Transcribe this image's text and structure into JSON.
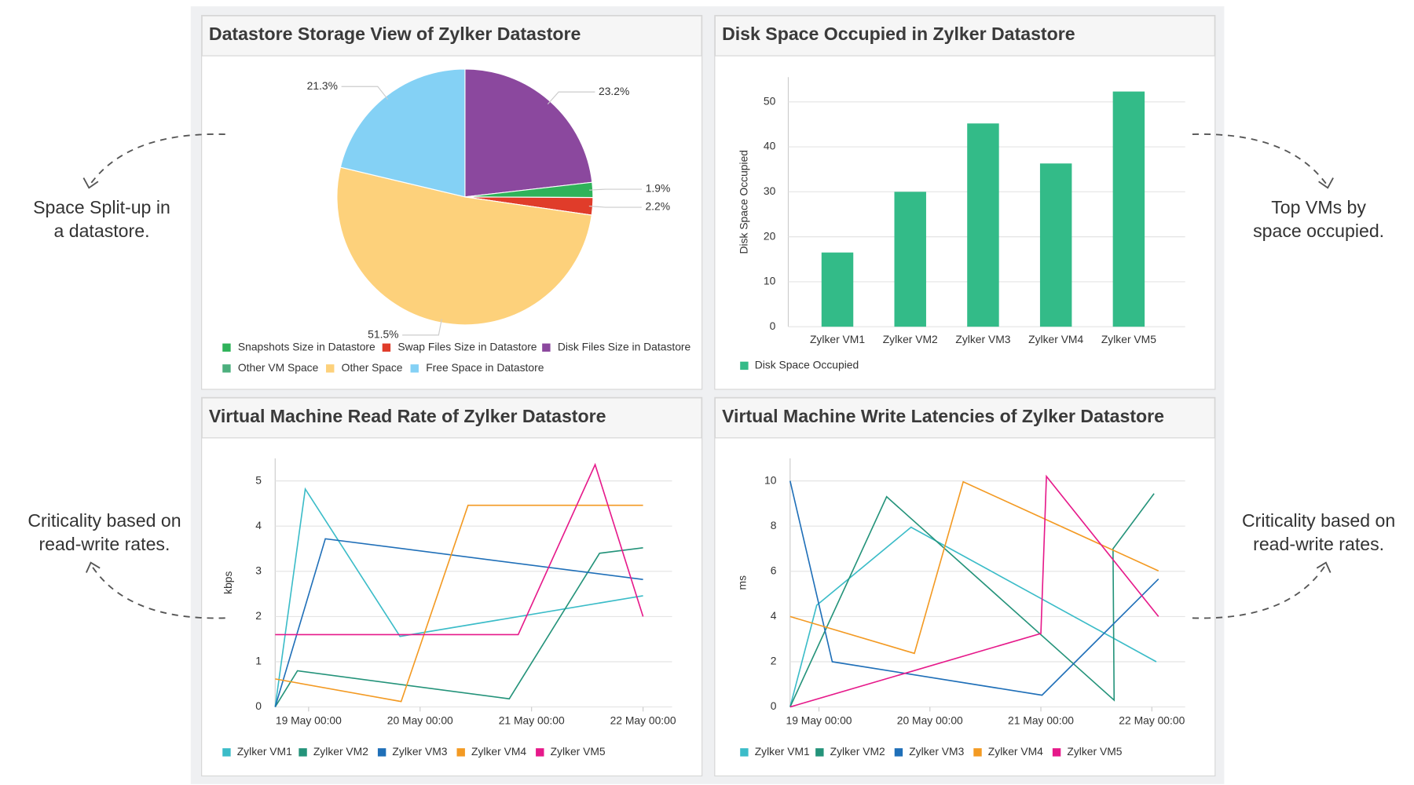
{
  "annotations": [
    {
      "lines": [
        "Space Split-up in",
        "a datastore."
      ]
    },
    {
      "lines": [
        "Top VMs by",
        "space occupied."
      ]
    },
    {
      "lines": [
        "Criticality based on",
        "read-write rates."
      ]
    },
    {
      "lines": [
        "Criticality based on",
        "read-write rates."
      ]
    }
  ],
  "chart_data": [
    {
      "type": "pie",
      "title": "Datastore Storage View of Zylker Datastore",
      "categories": [
        "Snapshots Size in Datastore",
        "Swap Files Size in Datastore",
        "Disk Files Size in Datastore",
        "Other VM Space",
        "Other Space",
        "Free Space in Datastore"
      ],
      "values": [
        1.9,
        2.2,
        23.2,
        0,
        51.5,
        21.3
      ],
      "value_labels": [
        "1.9%",
        "2.2%",
        "23.2%",
        null,
        "51.5%",
        "21.3%"
      ],
      "colors": [
        "#2fb35a",
        "#e03c2a",
        "#8b489e",
        "#4caf7d",
        "#fdd17b",
        "#84d1f5"
      ]
    },
    {
      "type": "bar",
      "title": "Disk Space Occupied in Zylker Datastore",
      "ylabel": "Disk Space Occupied",
      "categories": [
        "Zylker VM1",
        "Zylker VM2",
        "Zylker VM3",
        "Zylker VM4",
        "Zylker VM5"
      ],
      "series": [
        {
          "name": "Disk Space Occupied",
          "color": "#33bb88",
          "values": [
            16.5,
            30,
            45.2,
            36.3,
            52.3
          ]
        }
      ],
      "ylim": [
        0,
        55.5
      ],
      "yticks": [
        0,
        10,
        20,
        30,
        40,
        50
      ],
      "grid": true
    },
    {
      "type": "line",
      "title": "Virtual Machine Read Rate of Zylker Datastore",
      "ylabel": "kbps",
      "xlim": [
        -0.3,
        3.26
      ],
      "xticks": [
        {
          "value": 0,
          "label": "19 May 00:00"
        },
        {
          "value": 1,
          "label": "20 May 00:00"
        },
        {
          "value": 2,
          "label": "21 May 00:00"
        },
        {
          "value": 3,
          "label": "22 May 00:00"
        }
      ],
      "ylim": [
        0,
        5.5
      ],
      "yticks": [
        0,
        1,
        2,
        3,
        4,
        5
      ],
      "grid": true,
      "series": [
        {
          "name": "Zylker VM1",
          "color": "#3bbcc8",
          "x": [
            -0.3,
            -0.03,
            0.82,
            3.0
          ],
          "values": [
            0,
            4.82,
            1.56,
            2.46
          ]
        },
        {
          "name": "Zylker VM2",
          "color": "#24937a",
          "x": [
            -0.3,
            -0.1,
            1.8,
            2.61,
            3.0
          ],
          "values": [
            0,
            0.8,
            0.18,
            3.4,
            3.52
          ]
        },
        {
          "name": "Zylker VM3",
          "color": "#1f6fb8",
          "x": [
            -0.3,
            0.15,
            3.0
          ],
          "values": [
            0,
            3.72,
            2.82
          ]
        },
        {
          "name": "Zylker VM4",
          "color": "#f39a23",
          "x": [
            -0.3,
            0.83,
            1.43,
            3.0
          ],
          "values": [
            0.62,
            0.12,
            4.46,
            4.46
          ]
        },
        {
          "name": "Zylker VM5",
          "color": "#e6198a",
          "x": [
            -0.3,
            1.88,
            2.57,
            3.0
          ],
          "values": [
            1.6,
            1.6,
            5.36,
            2.0
          ]
        }
      ]
    },
    {
      "type": "line",
      "title": "Virtual Machine Write Latencies of Zylker Datastore",
      "ylabel": "ms",
      "xlim": [
        -0.26,
        3.3
      ],
      "xticks": [
        {
          "value": 0,
          "label": "19 May 00:00"
        },
        {
          "value": 1,
          "label": "20 May 00:00"
        },
        {
          "value": 2,
          "label": "21 May 00:00"
        },
        {
          "value": 3,
          "label": "22 May 00:00"
        }
      ],
      "ylim": [
        0,
        11
      ],
      "yticks": [
        0,
        2,
        4,
        6,
        8,
        10
      ],
      "grid": true,
      "series": [
        {
          "name": "Zylker VM1",
          "color": "#3bbcc8",
          "x": [
            -0.26,
            -0.02,
            0.83,
            3.04
          ],
          "values": [
            0,
            4.5,
            7.95,
            2.0
          ]
        },
        {
          "name": "Zylker VM2",
          "color": "#24937a",
          "x": [
            -0.26,
            0.61,
            2.66,
            2.65,
            3.02
          ],
          "values": [
            0,
            9.3,
            0.3,
            7.0,
            9.44
          ]
        },
        {
          "name": "Zylker VM3",
          "color": "#1f6fb8",
          "x": [
            -0.26,
            0.12,
            2.01,
            3.06
          ],
          "values": [
            10,
            2.0,
            0.52,
            5.66
          ]
        },
        {
          "name": "Zylker VM4",
          "color": "#f39a23",
          "x": [
            -0.26,
            0.86,
            1.3,
            3.06
          ],
          "values": [
            4.0,
            2.37,
            9.96,
            6.02
          ]
        },
        {
          "name": "Zylker VM5",
          "color": "#e6198a",
          "x": [
            -0.26,
            2.0,
            2.05,
            3.06
          ],
          "values": [
            0,
            3.25,
            10.2,
            4.0
          ]
        }
      ]
    }
  ]
}
